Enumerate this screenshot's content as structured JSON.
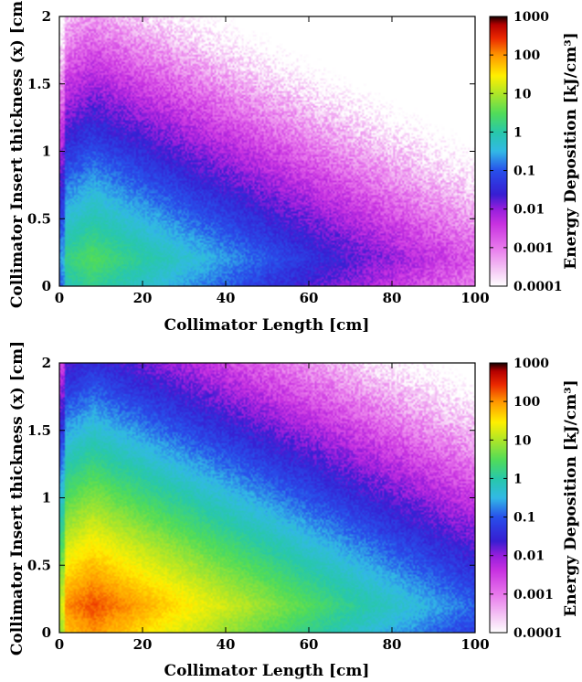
{
  "chart_data": [
    {
      "type": "heatmap",
      "title": "",
      "xlabel": "Collimator Length [cm]",
      "ylabel": "Collimator Insert thickness (x) [cm]",
      "xlim": [
        0,
        100
      ],
      "ylim": [
        0,
        2
      ],
      "xticks": [
        "0",
        "20",
        "40",
        "60",
        "80",
        "100"
      ],
      "yticks": [
        "0",
        "0.5",
        "1",
        "1.5",
        "2"
      ],
      "colorbar": {
        "label": "Energy Deposition [kJ/cm³]",
        "scale": "log",
        "range": [
          0.0001,
          1000
        ],
        "ticks": [
          "1000",
          "100",
          "10",
          "1",
          "0.1",
          "0.01",
          "0.001",
          "0.0001"
        ]
      },
      "peak": {
        "x": 8,
        "y": 0.2,
        "value": 3
      },
      "legend_placement": "right",
      "grid": false
    },
    {
      "type": "heatmap",
      "title": "",
      "xlabel": "Collimator Length [cm]",
      "ylabel": "Collimator Insert thickness (x) [cm]",
      "xlim": [
        0,
        100
      ],
      "ylim": [
        0,
        2
      ],
      "xticks": [
        "0",
        "20",
        "40",
        "60",
        "80",
        "100"
      ],
      "yticks": [
        "0",
        "0.5",
        "1",
        "1.5",
        "2"
      ],
      "colorbar": {
        "label": "Energy Deposition [kJ/cm³]",
        "scale": "log",
        "range": [
          0.0001,
          1000
        ],
        "ticks": [
          "1000",
          "100",
          "10",
          "1",
          "0.1",
          "0.01",
          "0.001",
          "0.0001"
        ]
      },
      "peak": {
        "x": 8,
        "y": 0.2,
        "value": 200
      },
      "legend_placement": "right",
      "grid": false
    }
  ]
}
